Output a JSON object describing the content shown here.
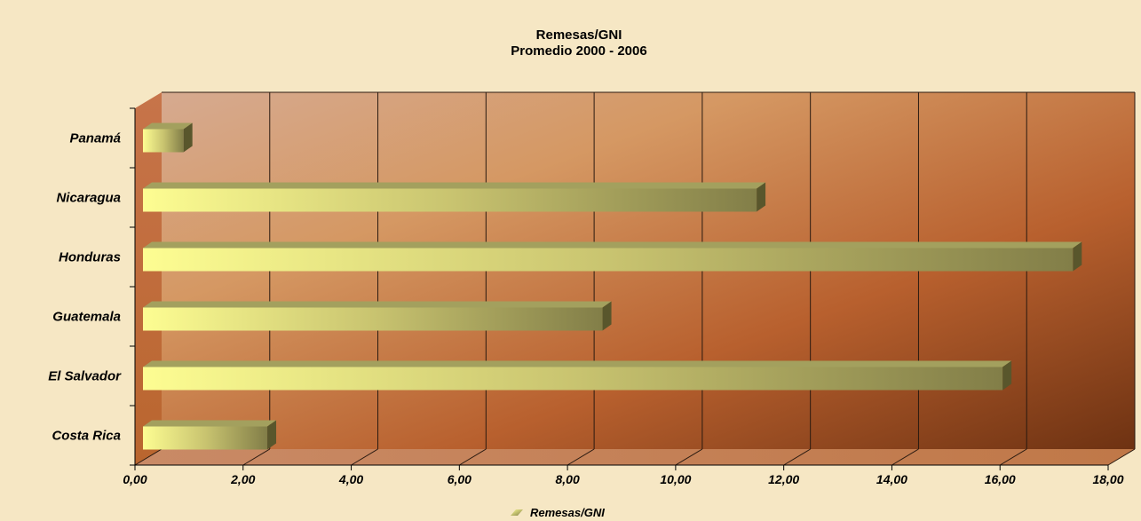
{
  "chart_data": {
    "type": "bar",
    "orientation": "horizontal",
    "title": "Remesas/GNI",
    "subtitle": "Promedio 2000 - 2006",
    "categories": [
      "Costa Rica",
      "El Salvador",
      "Guatemala",
      "Honduras",
      "Nicaragua",
      "Panamá"
    ],
    "series": [
      {
        "name": "Remesas/GNI",
        "values": [
          2.3,
          15.9,
          8.5,
          17.2,
          11.35,
          0.75
        ]
      }
    ],
    "xlim": [
      0,
      18
    ],
    "xticks": [
      "0,00",
      "2,00",
      "4,00",
      "6,00",
      "8,00",
      "10,00",
      "12,00",
      "14,00",
      "16,00",
      "18,00"
    ],
    "grid": true,
    "legend": "bottom",
    "colors": {
      "bar_light": "#fdfd90",
      "bar_dark": "#6e6a38",
      "wall_light": "#d6a88e",
      "wall_dark": "#6e3010",
      "page_background": "#f6e7c4"
    }
  }
}
